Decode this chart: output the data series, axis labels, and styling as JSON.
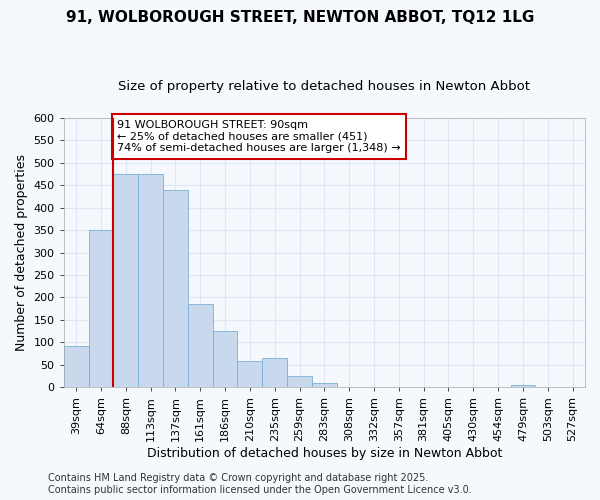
{
  "title": "91, WOLBOROUGH STREET, NEWTON ABBOT, TQ12 1LG",
  "subtitle": "Size of property relative to detached houses in Newton Abbot",
  "xlabel": "Distribution of detached houses by size in Newton Abbot",
  "ylabel": "Number of detached properties",
  "categories": [
    "39sqm",
    "64sqm",
    "88sqm",
    "113sqm",
    "137sqm",
    "161sqm",
    "186sqm",
    "210sqm",
    "235sqm",
    "259sqm",
    "283sqm",
    "308sqm",
    "332sqm",
    "357sqm",
    "381sqm",
    "405sqm",
    "430sqm",
    "454sqm",
    "479sqm",
    "503sqm",
    "527sqm"
  ],
  "values": [
    92,
    350,
    475,
    475,
    440,
    185,
    125,
    58,
    65,
    25,
    10,
    0,
    0,
    0,
    0,
    0,
    0,
    0,
    5,
    0,
    0
  ],
  "bar_color": "#c8d9ee",
  "bar_edge_color": "#7aafd4",
  "vline_color": "#cc0000",
  "vline_x_index": 2,
  "annotation_text": "91 WOLBOROUGH STREET: 90sqm\n← 25% of detached houses are smaller (451)\n74% of semi-detached houses are larger (1,348) →",
  "annotation_box_facecolor": "#ffffff",
  "annotation_box_edgecolor": "#cc0000",
  "ylim": [
    0,
    600
  ],
  "yticks": [
    0,
    50,
    100,
    150,
    200,
    250,
    300,
    350,
    400,
    450,
    500,
    550,
    600
  ],
  "background_color": "#f5f8fd",
  "grid_color": "#dce8f5",
  "footer": "Contains HM Land Registry data © Crown copyright and database right 2025.\nContains public sector information licensed under the Open Government Licence v3.0.",
  "title_fontsize": 11,
  "subtitle_fontsize": 9.5,
  "axis_label_fontsize": 9,
  "tick_fontsize": 8,
  "annotation_fontsize": 8,
  "footer_fontsize": 7
}
